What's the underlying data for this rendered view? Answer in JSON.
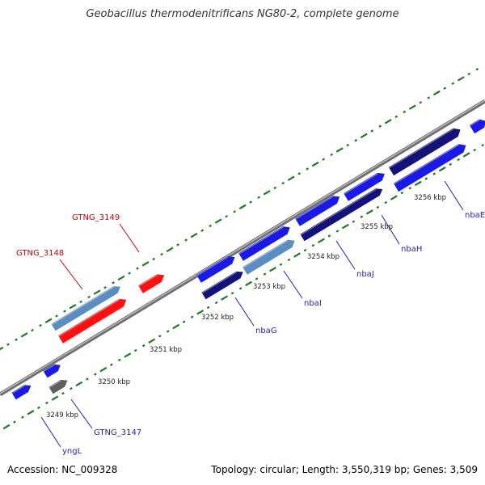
{
  "title": "Geobacillus thermodenitrificans NG80-2, complete genome",
  "footer": {
    "accession": "Accession: NC_009328",
    "summary": "Topology: circular; Length: 3,550,319 bp; Genes: 3,509"
  },
  "colors": {
    "backbone": "#8a8a8a",
    "tick": "#1f7a1f",
    "label_red": "#d40000",
    "label_blue": "#1f1fbf",
    "gene_blue": "#1a1ae6",
    "gene_steel": "#5b8cc2",
    "gene_red": "#ff1010",
    "gene_navy": "#12127a",
    "gene_cyan": "#1ae6e6",
    "gene_gray": "#606060"
  },
  "scale_labels": [
    "3249 kbp",
    "3250 kbp",
    "3251 kbp",
    "3252 kbp",
    "3253 kbp",
    "3254 kbp",
    "3255 kbp",
    "3256 kbp"
  ],
  "gene_labels": [
    {
      "text": "GTNG_3148",
      "color": "red"
    },
    {
      "text": "GTNG_3149",
      "color": "red"
    },
    {
      "text": "yngL",
      "color": "blue"
    },
    {
      "text": "GTNG_3147",
      "color": "blue"
    },
    {
      "text": "nbaG",
      "color": "blue"
    },
    {
      "text": "nbaI",
      "color": "blue"
    },
    {
      "text": "nbaJ",
      "color": "blue"
    },
    {
      "text": "nbaH",
      "color": "blue"
    },
    {
      "text": "nbaE",
      "color": "blue"
    }
  ],
  "genes": [
    {
      "color": "gene_blue"
    },
    {
      "color": "gene_blue"
    },
    {
      "color": "gene_gray"
    },
    {
      "color": "gene_steel"
    },
    {
      "color": "gene_red"
    },
    {
      "color": "gene_red"
    },
    {
      "color": "gene_blue"
    },
    {
      "color": "gene_navy"
    },
    {
      "color": "gene_blue"
    },
    {
      "color": "gene_steel"
    },
    {
      "color": "gene_blue"
    },
    {
      "color": "gene_navy"
    },
    {
      "color": "gene_blue"
    },
    {
      "color": "gene_navy"
    },
    {
      "color": "gene_blue"
    },
    {
      "color": "gene_cyan"
    },
    {
      "color": "gene_blue"
    }
  ]
}
